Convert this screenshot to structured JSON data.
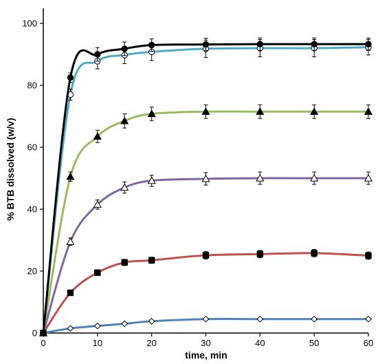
{
  "chart_data": {
    "type": "line",
    "title": "",
    "xlabel": "time, min",
    "ylabel": "% BTB dissolved (w/v)",
    "xlim": [
      0,
      60
    ],
    "ylim": [
      0,
      100
    ],
    "x_ticks": [
      0,
      10,
      20,
      30,
      40,
      50,
      60
    ],
    "y_ticks": [
      0,
      20,
      40,
      60,
      80,
      100
    ],
    "grid": false,
    "legend": "none",
    "x": [
      0,
      5,
      10,
      15,
      20,
      30,
      40,
      50,
      60
    ],
    "series": [
      {
        "line_color": "#000000",
        "marker": "circle-filled",
        "values": [
          0,
          82.5,
          90,
          91.8,
          93,
          93.2,
          93.3,
          93.3,
          93.3
        ],
        "errors": [
          0,
          1.5,
          2.2,
          2.2,
          2.0,
          2.0,
          2.0,
          2.0,
          2.0
        ]
      },
      {
        "line_color": "#4bacc6",
        "marker": "circle-open",
        "values": [
          0,
          77,
          87.8,
          89.8,
          90.8,
          91.8,
          92,
          92,
          92.3
        ],
        "errors": [
          0,
          1.8,
          2.5,
          2.8,
          2.8,
          2.8,
          2.8,
          2.8,
          2.5
        ]
      },
      {
        "line_color": "#9bbb59",
        "marker": "triangle-filled",
        "values": [
          0,
          50.5,
          63.5,
          68.5,
          70.8,
          71.5,
          71.5,
          71.5,
          71.5
        ],
        "errors": [
          0,
          1.5,
          2.0,
          2.3,
          2.2,
          2.2,
          2.2,
          2.2,
          2.2
        ]
      },
      {
        "line_color": "#8064a2",
        "marker": "triangle-open",
        "values": [
          0,
          29.5,
          41.5,
          47,
          49.2,
          49.8,
          50,
          50,
          50
        ],
        "errors": [
          0,
          1.2,
          1.5,
          1.8,
          1.8,
          2.0,
          2.0,
          2.0,
          2.0
        ]
      },
      {
        "line_color": "#c0504d",
        "marker": "square-filled",
        "values": [
          0,
          13,
          19.5,
          22.8,
          23.5,
          25.1,
          25.5,
          25.8,
          25
        ],
        "errors": [
          0,
          0.6,
          0.8,
          1.0,
          1.0,
          1.2,
          1.2,
          1.2,
          1.2
        ]
      },
      {
        "line_color": "#4f81bd",
        "marker": "diamond-open",
        "values": [
          0,
          1.5,
          2.3,
          3,
          3.8,
          4.5,
          4.5,
          4.5,
          4.5
        ],
        "errors": [
          0,
          0.2,
          0.3,
          0.3,
          0.3,
          0.3,
          0.3,
          0.3,
          0.3
        ]
      }
    ]
  }
}
